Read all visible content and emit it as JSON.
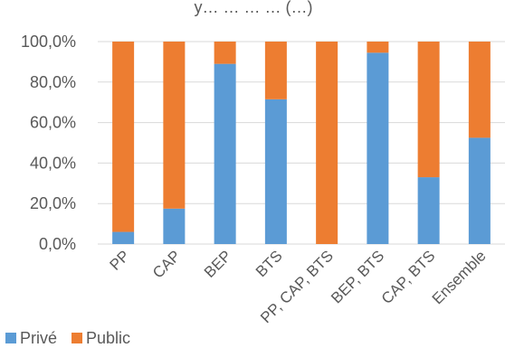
{
  "chart_data": {
    "type": "bar",
    "stacked": true,
    "percent": true,
    "title": "y… … … … (…)",
    "categories": [
      "PP",
      "CAP",
      "BEP",
      "BTS",
      "PP, CAP, BTS",
      "BEP, BTS",
      "CAP, BTS",
      "Ensemble"
    ],
    "series": [
      {
        "name": "Privé",
        "color": "#5B9BD5",
        "values": [
          6.0,
          17.5,
          89.0,
          71.5,
          0.0,
          94.5,
          33.0,
          52.5
        ]
      },
      {
        "name": "Public",
        "color": "#ED7D31",
        "values": [
          94.0,
          82.5,
          11.0,
          28.5,
          100.0,
          5.5,
          67.0,
          47.5
        ]
      }
    ],
    "ylim": [
      0,
      100
    ],
    "yticks": [
      "0,0%",
      "20,0%",
      "40,0%",
      "60,0%",
      "80,0%",
      "100,0%"
    ],
    "grid": true,
    "legend": "bottom-left"
  }
}
